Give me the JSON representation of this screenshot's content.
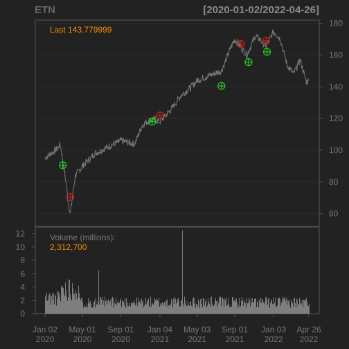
{
  "chart_data": {
    "type": "line",
    "title": {
      "symbol": "ETN",
      "range": "[2020-01-02/2022-04-26]"
    },
    "price_panel": {
      "last_label": "Last",
      "last_value": "143.779999",
      "y_ticks": [
        60,
        80,
        100,
        120,
        140,
        160,
        180
      ],
      "ylim": [
        52,
        182
      ],
      "series": {
        "x": [
          "2020-01-02",
          "2020-02-10",
          "2020-02-20",
          "2020-03-09",
          "2020-03-16",
          "2020-03-23",
          "2020-04-08",
          "2020-05-01",
          "2020-06-10",
          "2020-07-20",
          "2020-09-01",
          "2020-10-15",
          "2020-11-09",
          "2020-12-10",
          "2021-01-04",
          "2021-02-10",
          "2021-03-10",
          "2021-04-15",
          "2021-05-03",
          "2021-06-10",
          "2021-07-20",
          "2021-08-20",
          "2021-09-01",
          "2021-09-20",
          "2021-10-10",
          "2021-11-05",
          "2021-11-20",
          "2021-12-10",
          "2022-01-03",
          "2022-01-25",
          "2022-02-15",
          "2022-03-08",
          "2022-03-29",
          "2022-04-18",
          "2022-04-26"
        ],
        "close": [
          95,
          101,
          104,
          80,
          68,
          60,
          84,
          90,
          98,
          102,
          106,
          104,
          116,
          120,
          118,
          126,
          134,
          140,
          144,
          147,
          150,
          165,
          170,
          165,
          160,
          172,
          170,
          165,
          175,
          170,
          154,
          148,
          157,
          143,
          143.78
        ]
      },
      "signals": [
        {
          "date": "2020-02-28",
          "price": 90.5,
          "type": "buy"
        },
        {
          "date": "2020-03-23",
          "price": 70.5,
          "type": "sell"
        },
        {
          "date": "2020-12-10",
          "price": 118,
          "type": "buy"
        },
        {
          "date": "2021-01-04",
          "price": 122,
          "type": "sell"
        },
        {
          "date": "2021-07-20",
          "price": 140.5,
          "type": "buy"
        },
        {
          "date": "2021-09-20",
          "price": 167,
          "type": "sell"
        },
        {
          "date": "2021-10-15",
          "price": 155.5,
          "type": "buy"
        },
        {
          "date": "2021-12-10",
          "price": 169,
          "type": "sell"
        },
        {
          "date": "2021-12-13",
          "price": 162,
          "type": "buy"
        }
      ]
    },
    "volume_panel": {
      "label": "Volume (millions):",
      "last_value": "2,312,700",
      "y_ticks": [
        0,
        2,
        4,
        6,
        8,
        10,
        12
      ],
      "ylim": [
        0,
        13
      ]
    },
    "x_ticks": [
      {
        "date": "2020-01-02",
        "label": "Jan 02",
        "year": "2020"
      },
      {
        "date": "2020-05-01",
        "label": "May 01",
        "year": "2020"
      },
      {
        "date": "2020-09-01",
        "label": "Sep 01",
        "year": "2020"
      },
      {
        "date": "2021-01-04",
        "label": "Jan 04",
        "year": "2021"
      },
      {
        "date": "2021-05-03",
        "label": "May 03",
        "year": "2021"
      },
      {
        "date": "2021-09-01",
        "label": "Sep 01",
        "year": "2021"
      },
      {
        "date": "2022-01-03",
        "label": "Jan 03",
        "year": "2022"
      },
      {
        "date": "2022-04-26",
        "label": "Apr 26",
        "year": "2022"
      }
    ],
    "colors": {
      "background": "#222222",
      "price_line": "#777777",
      "volume_bars": "#888888",
      "buy_marker": "#22cc22",
      "sell_marker": "#c42020",
      "highlight_text": "#f08c00",
      "grid": "#2c2c2c"
    }
  }
}
